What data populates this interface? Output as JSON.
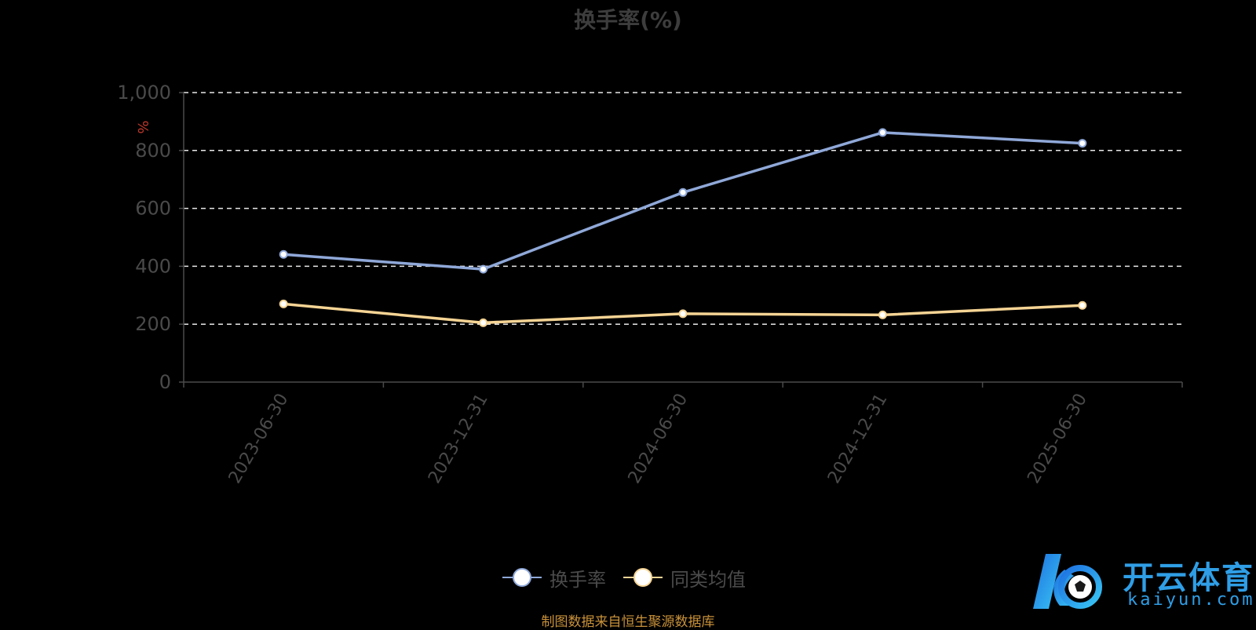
{
  "chart_data": {
    "type": "line",
    "title": "换手率(%)",
    "ylabel": "%",
    "categories": [
      "2023-06-30",
      "2023-12-31",
      "2024-06-30",
      "2024-12-31",
      "2025-06-30"
    ],
    "series": [
      {
        "name": "换手率",
        "values": [
          441,
          390,
          655,
          862,
          825
        ],
        "color": "#8fa8d8"
      },
      {
        "name": "同类均值",
        "values": [
          270,
          205,
          236,
          232,
          265
        ],
        "color": "#f5d494"
      }
    ],
    "ylim": [
      0,
      1000
    ],
    "yticks": [
      0,
      200,
      400,
      600,
      800,
      1000
    ],
    "ytick_labels": [
      "0",
      "200",
      "400",
      "600",
      "800",
      "1,000"
    ],
    "grid": true,
    "legend_position": "bottom"
  },
  "footer": "制图数据来自恒生聚源数据库",
  "watermark": {
    "text_cn": "开云体育",
    "text_en": "kaiyun.com",
    "brand_color": "#2f9ee6"
  }
}
